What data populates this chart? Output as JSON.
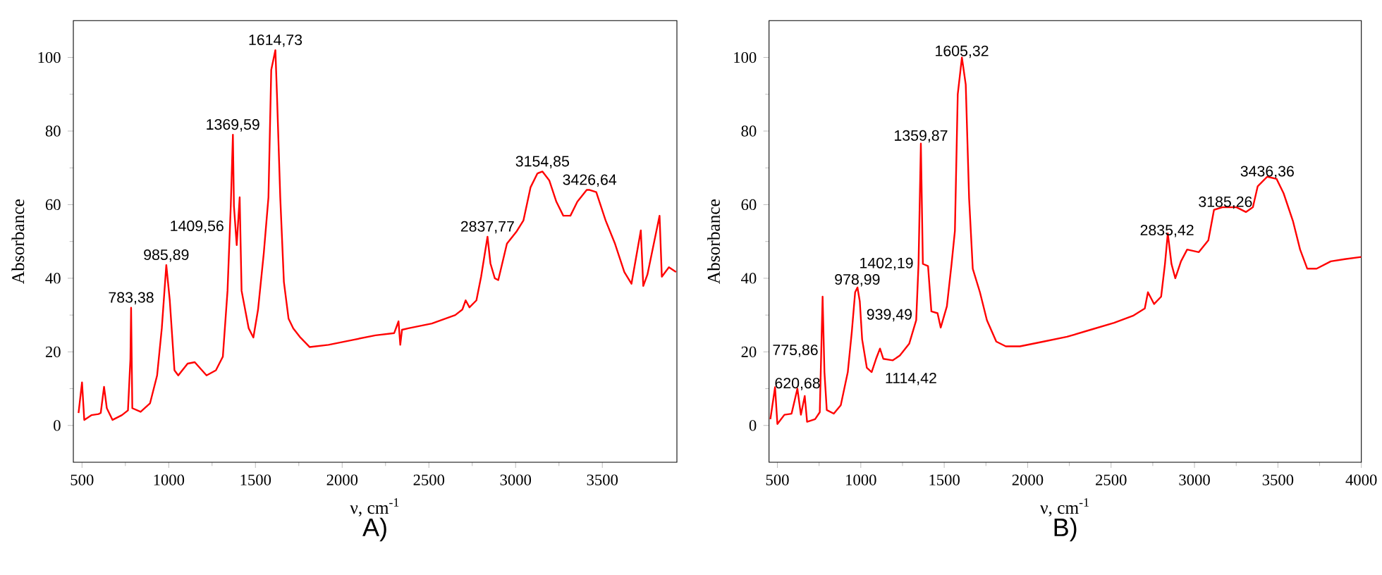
{
  "chart_data": [
    {
      "type": "line",
      "title": "A)",
      "xlabel": "ν, cm$^{-1}$",
      "ylabel": "Absorbance",
      "xlim": [
        450,
        3930
      ],
      "ylim": [
        -10,
        110
      ],
      "xticks": [
        500,
        1000,
        1500,
        2000,
        2500,
        3000,
        3500
      ],
      "yticks": [
        0,
        20,
        40,
        60,
        80,
        100
      ],
      "series": [
        {
          "color": "#ff0000",
          "x": [
            480,
            500,
            513,
            554,
            595,
            608,
            627,
            643,
            676,
            730,
            765,
            779,
            783,
            790,
            838,
            892,
            933,
            960,
            986,
            1006,
            1033,
            1055,
            1109,
            1150,
            1218,
            1272,
            1312,
            1339,
            1358,
            1370,
            1376,
            1392,
            1409,
            1420,
            1461,
            1488,
            1515,
            1548,
            1575,
            1591,
            1615,
            1624,
            1643,
            1664,
            1691,
            1718,
            1759,
            1813,
            1921,
            2057,
            2192,
            2300,
            2325,
            2335,
            2345,
            2382,
            2517,
            2652,
            2693,
            2712,
            2734,
            2774,
            2801,
            2820,
            2838,
            2855,
            2880,
            2900,
            2950,
            3004,
            3045,
            3086,
            3126,
            3155,
            3194,
            3235,
            3275,
            3316,
            3356,
            3410,
            3427,
            3465,
            3519,
            3573,
            3627,
            3668,
            3722,
            3736,
            3760,
            3830,
            3843,
            3884,
            3925
          ],
          "values": [
            3.4,
            11.7,
            1.5,
            2.8,
            3.1,
            3.4,
            10.5,
            4.7,
            1.5,
            2.8,
            4.1,
            18,
            32,
            4.7,
            3.7,
            6,
            13.6,
            26.4,
            43.6,
            34,
            15,
            13.6,
            16.8,
            17.2,
            13.6,
            15,
            18.7,
            36.6,
            60,
            79,
            59.6,
            49,
            62,
            36.6,
            26.4,
            23.9,
            31.5,
            46.8,
            62,
            96.6,
            102,
            90,
            62,
            39,
            29,
            26.4,
            23.9,
            21.3,
            21.9,
            23.2,
            24.5,
            25.1,
            28.3,
            21.9,
            26,
            26.4,
            27.7,
            30,
            31.5,
            34,
            32.1,
            34,
            40.4,
            46,
            51.3,
            44,
            40,
            39.5,
            49.4,
            52.6,
            55.7,
            64.7,
            68.5,
            69,
            66.6,
            60.8,
            57,
            57,
            60.8,
            64,
            64,
            63.4,
            55.7,
            49.4,
            41.7,
            38.5,
            53,
            37.9,
            41,
            57,
            40.4,
            43,
            41.7
          ]
        }
      ],
      "annotations": [
        {
          "text": "783,38",
          "x": 783.38,
          "y": 32
        },
        {
          "text": "985,89",
          "x": 985.89,
          "y": 43.6
        },
        {
          "text": "1369,59",
          "x": 1369.59,
          "y": 79
        },
        {
          "text": "1409,56",
          "x": 1409.56,
          "y": 62
        },
        {
          "text": "1614,73",
          "x": 1614.73,
          "y": 102
        },
        {
          "text": "2837,77",
          "x": 2837.77,
          "y": 51.3
        },
        {
          "text": "3154,85",
          "x": 3154.85,
          "y": 69
        },
        {
          "text": "3426,64",
          "x": 3426.64,
          "y": 64
        }
      ]
    },
    {
      "type": "line",
      "title": "B)",
      "xlabel": "ν, cm$^{-1}$",
      "ylabel": "Absorbance",
      "xlim": [
        450,
        4000
      ],
      "ylim": [
        -10,
        110
      ],
      "xticks": [
        500,
        1000,
        1500,
        2000,
        2500,
        3000,
        3500,
        4000
      ],
      "yticks": [
        0,
        20,
        40,
        60,
        80,
        100
      ],
      "series": [
        {
          "color": "#ff0000",
          "x": [
            458,
            486,
            500,
            542,
            585,
            620,
            641,
            664,
            678,
            726,
            754,
            771,
            782,
            796,
            838,
            880,
            922,
            946,
            966,
            980,
            994,
            1008,
            1036,
            1065,
            1093,
            1115,
            1135,
            1192,
            1234,
            1290,
            1332,
            1346,
            1360,
            1372,
            1403,
            1423,
            1460,
            1479,
            1516,
            1544,
            1564,
            1581,
            1606,
            1629,
            1649,
            1671,
            1714,
            1756,
            1812,
            1869,
            1954,
            2095,
            2236,
            2377,
            2518,
            2631,
            2702,
            2721,
            2758,
            2800,
            2823,
            2840,
            2862,
            2885,
            2919,
            2956,
            3026,
            3083,
            3117,
            3167,
            3252,
            3308,
            3350,
            3379,
            3436,
            3492,
            3534,
            3591,
            3633,
            3676,
            3732,
            3817,
            3901,
            4000
          ],
          "values": [
            1.7,
            10.4,
            0.4,
            2.9,
            3.2,
            10,
            2.9,
            8,
            1,
            1.7,
            3.6,
            35,
            14.5,
            4.2,
            3.2,
            5.5,
            14.5,
            25.4,
            36.2,
            37.5,
            33.7,
            23.4,
            15.7,
            14.5,
            18.3,
            20.9,
            18.1,
            17.7,
            19,
            22.2,
            28.6,
            43.9,
            76.6,
            43.9,
            43.3,
            31,
            30.5,
            26.6,
            32.4,
            43.9,
            52.9,
            90,
            100,
            92.6,
            61.8,
            42.6,
            36.2,
            28.6,
            22.8,
            21.5,
            21.5,
            22.8,
            24.1,
            26,
            27.9,
            29.8,
            31.8,
            36.2,
            33,
            35,
            43.9,
            52.2,
            43.9,
            40,
            44.6,
            47.8,
            47.1,
            50.3,
            58.6,
            59.3,
            59.3,
            58,
            59.3,
            65,
            67.6,
            67,
            63.1,
            55.4,
            47.8,
            42.6,
            42.6,
            44.6,
            45.2,
            45.8
          ]
        }
      ],
      "annotations": [
        {
          "text": "620,68",
          "x": 620.68,
          "y": 8.7
        },
        {
          "text": "775,86",
          "x": 775.86,
          "y": 18.3
        },
        {
          "text": "939,49",
          "x": 939.49,
          "y": 23.4
        },
        {
          "text": "978,99",
          "x": 978.99,
          "y": 36.9
        },
        {
          "text": "1114,42",
          "x": 1114.42,
          "y": 20.2
        },
        {
          "text": "1359,87",
          "x": 1359.87,
          "y": 76
        },
        {
          "text": "1402,19",
          "x": 1402.19,
          "y": 43.9
        },
        {
          "text": "1605,32",
          "x": 1605.32,
          "y": 99
        },
        {
          "text": "2835,42",
          "x": 2835.42,
          "y": 50.3
        },
        {
          "text": "3185,26",
          "x": 3185.26,
          "y": 58
        },
        {
          "text": "3436,36",
          "x": 3436.36,
          "y": 66.3
        }
      ]
    }
  ]
}
